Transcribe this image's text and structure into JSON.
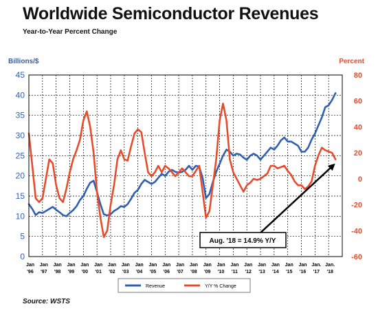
{
  "page": {
    "title": "Worldwide Semiconductor Revenues",
    "subtitle": "Year-to-Year Percent Change",
    "source": "Source: WSTS"
  },
  "chart_data": {
    "type": "line",
    "left_axis": {
      "label": "Billions/$",
      "ylim": [
        0,
        45
      ],
      "ticks": [
        0,
        5,
        10,
        15,
        20,
        25,
        30,
        35,
        40,
        45
      ],
      "color": "#2F5FB3"
    },
    "right_axis": {
      "label": "Percent",
      "ylim": [
        -60,
        80
      ],
      "ticks": [
        -60,
        -40,
        -20,
        0,
        20,
        40,
        60,
        80
      ],
      "color": "#E84B2A"
    },
    "x_labels": [
      {
        "top": "Jan",
        "bottom": "'96"
      },
      {
        "top": "Jan",
        "bottom": "'97"
      },
      {
        "top": "Jan",
        "bottom": "'98"
      },
      {
        "top": "Jan",
        "bottom": "'99"
      },
      {
        "top": "Jan",
        "bottom": "'00"
      },
      {
        "top": "Jan",
        "bottom": "'01"
      },
      {
        "top": "Jan",
        "bottom": "'02"
      },
      {
        "top": "Jan",
        "bottom": "'03"
      },
      {
        "top": "Jan",
        "bottom": "'04"
      },
      {
        "top": "Jan",
        "bottom": "'05"
      },
      {
        "top": "Jan",
        "bottom": "'06"
      },
      {
        "top": "Jan",
        "bottom": "'07"
      },
      {
        "top": "Jan",
        "bottom": "'08"
      },
      {
        "top": "Jan",
        "bottom": "'09"
      },
      {
        "top": "Jan",
        "bottom": "'10"
      },
      {
        "top": "Jan",
        "bottom": "'11"
      },
      {
        "top": "Jan",
        "bottom": "'12"
      },
      {
        "top": "Jan",
        "bottom": "'13"
      },
      {
        "top": "Jan",
        "bottom": "'14"
      },
      {
        "top": "Jan",
        "bottom": "'15"
      },
      {
        "top": "Jan",
        "bottom": "'16"
      },
      {
        "top": "Jan.",
        "bottom": "'17"
      },
      {
        "top": "Jan.",
        "bottom": "'18"
      }
    ],
    "grid": true,
    "legend": {
      "placement": "bottom"
    },
    "series": [
      {
        "name": "Revenue",
        "axis": "left",
        "color": "#2F5FB3",
        "points": [
          [
            1996.0,
            13.0
          ],
          [
            1996.25,
            11.8
          ],
          [
            1996.5,
            10.3
          ],
          [
            1996.75,
            11.0
          ],
          [
            1997.0,
            10.8
          ],
          [
            1997.25,
            11.3
          ],
          [
            1997.5,
            11.8
          ],
          [
            1997.75,
            12.3
          ],
          [
            1998.0,
            11.6
          ],
          [
            1998.25,
            11.0
          ],
          [
            1998.5,
            10.3
          ],
          [
            1998.75,
            10.0
          ],
          [
            1999.0,
            10.8
          ],
          [
            1999.25,
            11.5
          ],
          [
            1999.5,
            12.5
          ],
          [
            1999.75,
            14.0
          ],
          [
            2000.0,
            15.0
          ],
          [
            2000.25,
            16.8
          ],
          [
            2000.5,
            18.3
          ],
          [
            2000.75,
            18.8
          ],
          [
            2001.0,
            16.0
          ],
          [
            2001.25,
            13.0
          ],
          [
            2001.5,
            10.5
          ],
          [
            2001.75,
            10.2
          ],
          [
            2002.0,
            10.5
          ],
          [
            2002.25,
            11.3
          ],
          [
            2002.5,
            11.8
          ],
          [
            2002.75,
            12.5
          ],
          [
            2003.0,
            12.3
          ],
          [
            2003.25,
            13.0
          ],
          [
            2003.5,
            14.3
          ],
          [
            2003.75,
            15.8
          ],
          [
            2004.0,
            16.5
          ],
          [
            2004.25,
            18.0
          ],
          [
            2004.5,
            19.0
          ],
          [
            2004.75,
            18.5
          ],
          [
            2005.0,
            18.0
          ],
          [
            2005.25,
            18.5
          ],
          [
            2005.5,
            19.5
          ],
          [
            2005.75,
            20.5
          ],
          [
            2006.0,
            20.0
          ],
          [
            2006.25,
            21.0
          ],
          [
            2006.5,
            21.5
          ],
          [
            2006.75,
            21.0
          ],
          [
            2007.0,
            20.8
          ],
          [
            2007.25,
            21.0
          ],
          [
            2007.5,
            21.5
          ],
          [
            2007.75,
            22.5
          ],
          [
            2008.0,
            21.5
          ],
          [
            2008.25,
            22.5
          ],
          [
            2008.5,
            22.3
          ],
          [
            2008.75,
            19.5
          ],
          [
            2009.0,
            14.5
          ],
          [
            2009.25,
            15.5
          ],
          [
            2009.5,
            18.5
          ],
          [
            2009.75,
            21.0
          ],
          [
            2010.0,
            23.0
          ],
          [
            2010.25,
            25.0
          ],
          [
            2010.5,
            26.5
          ],
          [
            2010.75,
            26.0
          ],
          [
            2011.0,
            25.0
          ],
          [
            2011.25,
            25.5
          ],
          [
            2011.5,
            25.3
          ],
          [
            2011.75,
            24.5
          ],
          [
            2012.0,
            24.0
          ],
          [
            2012.25,
            25.0
          ],
          [
            2012.5,
            25.5
          ],
          [
            2012.75,
            25.0
          ],
          [
            2013.0,
            24.0
          ],
          [
            2013.25,
            25.0
          ],
          [
            2013.5,
            26.0
          ],
          [
            2013.75,
            27.0
          ],
          [
            2014.0,
            26.5
          ],
          [
            2014.25,
            27.5
          ],
          [
            2014.5,
            28.8
          ],
          [
            2014.75,
            29.5
          ],
          [
            2015.0,
            28.5
          ],
          [
            2015.25,
            28.5
          ],
          [
            2015.5,
            28.0
          ],
          [
            2015.75,
            27.5
          ],
          [
            2016.0,
            26.0
          ],
          [
            2016.25,
            26.0
          ],
          [
            2016.5,
            27.0
          ],
          [
            2016.75,
            29.0
          ],
          [
            2017.0,
            30.5
          ],
          [
            2017.25,
            32.5
          ],
          [
            2017.5,
            34.5
          ],
          [
            2017.75,
            37.0
          ],
          [
            2018.0,
            37.5
          ],
          [
            2018.25,
            38.8
          ],
          [
            2018.5,
            40.5
          ]
        ]
      },
      {
        "name": "Y/Y % Change",
        "axis": "right",
        "color": "#E84B2A",
        "points": [
          [
            1996.0,
            35
          ],
          [
            1996.25,
            10
          ],
          [
            1996.5,
            -15
          ],
          [
            1996.75,
            -18
          ],
          [
            1997.0,
            -15
          ],
          [
            1997.25,
            0
          ],
          [
            1997.5,
            15
          ],
          [
            1997.75,
            12
          ],
          [
            1998.0,
            -5
          ],
          [
            1998.25,
            -15
          ],
          [
            1998.5,
            -18
          ],
          [
            1998.75,
            -8
          ],
          [
            1999.0,
            5
          ],
          [
            1999.25,
            15
          ],
          [
            1999.5,
            22
          ],
          [
            1999.75,
            30
          ],
          [
            2000.0,
            45
          ],
          [
            2000.25,
            52
          ],
          [
            2000.5,
            40
          ],
          [
            2000.75,
            20
          ],
          [
            2001.0,
            -10
          ],
          [
            2001.25,
            -30
          ],
          [
            2001.5,
            -45
          ],
          [
            2001.75,
            -40
          ],
          [
            2002.0,
            -20
          ],
          [
            2002.25,
            -5
          ],
          [
            2002.5,
            15
          ],
          [
            2002.75,
            22
          ],
          [
            2003.0,
            15
          ],
          [
            2003.25,
            14
          ],
          [
            2003.5,
            25
          ],
          [
            2003.75,
            35
          ],
          [
            2004.0,
            38
          ],
          [
            2004.25,
            36
          ],
          [
            2004.5,
            20
          ],
          [
            2004.75,
            5
          ],
          [
            2005.0,
            2
          ],
          [
            2005.25,
            5
          ],
          [
            2005.5,
            10
          ],
          [
            2005.75,
            5
          ],
          [
            2006.0,
            10
          ],
          [
            2006.25,
            8
          ],
          [
            2006.5,
            5
          ],
          [
            2006.75,
            2
          ],
          [
            2007.0,
            5
          ],
          [
            2007.25,
            8
          ],
          [
            2007.5,
            5
          ],
          [
            2007.75,
            2
          ],
          [
            2008.0,
            2
          ],
          [
            2008.25,
            6
          ],
          [
            2008.5,
            10
          ],
          [
            2008.75,
            -10
          ],
          [
            2009.0,
            -30
          ],
          [
            2009.25,
            -25
          ],
          [
            2009.5,
            -5
          ],
          [
            2009.75,
            15
          ],
          [
            2010.0,
            45
          ],
          [
            2010.25,
            58
          ],
          [
            2010.5,
            45
          ],
          [
            2010.75,
            15
          ],
          [
            2011.0,
            5
          ],
          [
            2011.25,
            0
          ],
          [
            2011.5,
            -5
          ],
          [
            2011.75,
            -10
          ],
          [
            2012.0,
            -5
          ],
          [
            2012.25,
            -3
          ],
          [
            2012.5,
            0
          ],
          [
            2012.75,
            -1
          ],
          [
            2013.0,
            0
          ],
          [
            2013.25,
            2
          ],
          [
            2013.5,
            4
          ],
          [
            2013.75,
            10
          ],
          [
            2014.0,
            10
          ],
          [
            2014.25,
            8
          ],
          [
            2014.5,
            9
          ],
          [
            2014.75,
            10
          ],
          [
            2015.0,
            6
          ],
          [
            2015.25,
            3
          ],
          [
            2015.5,
            -2
          ],
          [
            2015.75,
            -5
          ],
          [
            2016.0,
            -5
          ],
          [
            2016.25,
            -8
          ],
          [
            2016.5,
            -6
          ],
          [
            2016.75,
            -2
          ],
          [
            2017.0,
            10
          ],
          [
            2017.25,
            18
          ],
          [
            2017.5,
            24
          ],
          [
            2017.75,
            22
          ],
          [
            2018.0,
            21
          ],
          [
            2018.25,
            20
          ],
          [
            2018.5,
            15
          ]
        ]
      }
    ],
    "annotations": [
      {
        "text": "Aug. '18 = 14.9% Y/Y",
        "points_to": {
          "series": "Y/Y % Change",
          "x": 2018.58,
          "y": 14.9
        }
      }
    ]
  }
}
